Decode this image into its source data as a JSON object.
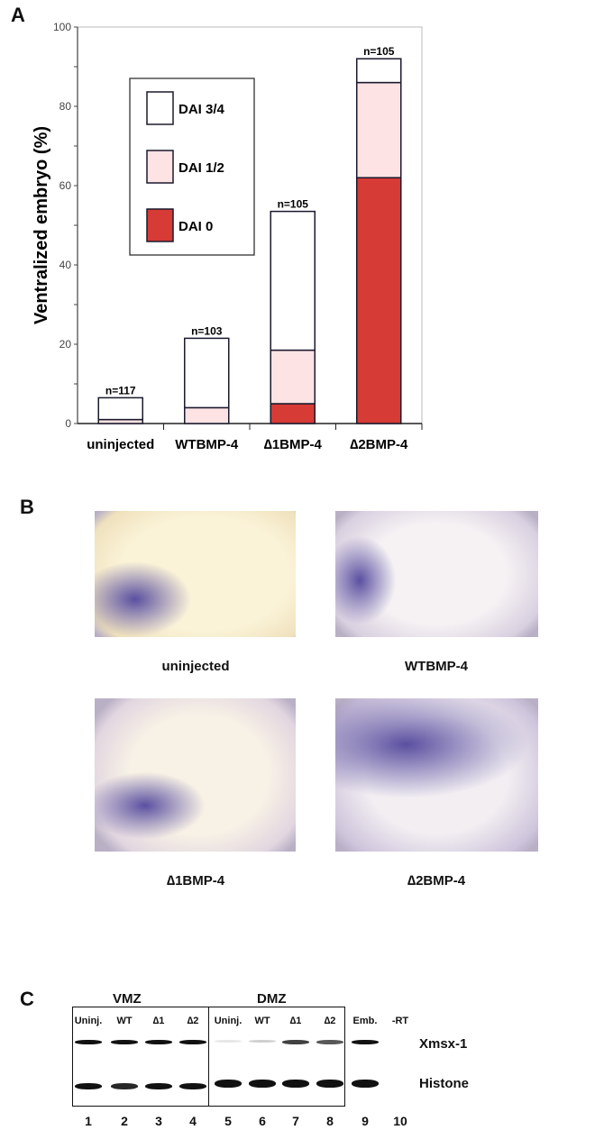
{
  "panels": {
    "a": "A",
    "b": "B",
    "c": "C"
  },
  "chart_data": {
    "type": "bar",
    "stacked": true,
    "title": "",
    "xlabel": "",
    "ylabel": "Ventralized embryo (%)",
    "ylim": [
      0,
      100
    ],
    "yticks": [
      "0",
      "20",
      "40",
      "60",
      "80",
      "100"
    ],
    "categories": [
      "uninjected",
      "WTBMP-4",
      "∆1BMP-4",
      "∆2BMP-4"
    ],
    "n_labels": [
      "n=117",
      "n=103",
      "n=105",
      "n=105"
    ],
    "series": [
      {
        "name": "DAI 0",
        "values": [
          0,
          0,
          5,
          62
        ],
        "color": "#d63b36"
      },
      {
        "name": "DAI 1/2",
        "values": [
          1,
          4,
          13.5,
          24
        ],
        "color": "#fde3e3"
      },
      {
        "name": "DAI 3/4",
        "values": [
          5.5,
          17.5,
          35,
          6
        ],
        "color": "#ffffff"
      }
    ],
    "legend_order": [
      "DAI 3/4",
      "DAI 1/2",
      "DAI 0"
    ],
    "legend_placement": "top-left",
    "grid": false
  },
  "panel_b": {
    "labels": [
      "uninjected",
      "WTBMP-4",
      "∆1BMP-4",
      "∆2BMP-4"
    ],
    "stain_color": "#5a4fa0"
  },
  "panel_c": {
    "groups": [
      "VMZ",
      "DMZ"
    ],
    "lanes": [
      "Uninj.",
      "WT",
      "∆1",
      "∆2",
      "Uninj.",
      "WT",
      "∆1",
      "∆2",
      "Emb.",
      "-RT"
    ],
    "lane_numbers": [
      "1",
      "2",
      "3",
      "4",
      "5",
      "6",
      "7",
      "8",
      "9",
      "10"
    ],
    "genes": [
      "Xmsx-1",
      "Histone"
    ],
    "xmsx_intensity": [
      1,
      1,
      1,
      1,
      0.1,
      0.2,
      0.8,
      0.7,
      1,
      0
    ],
    "histone_intensity": [
      1,
      0.9,
      1,
      1,
      1,
      1,
      1,
      1,
      1,
      0
    ]
  }
}
